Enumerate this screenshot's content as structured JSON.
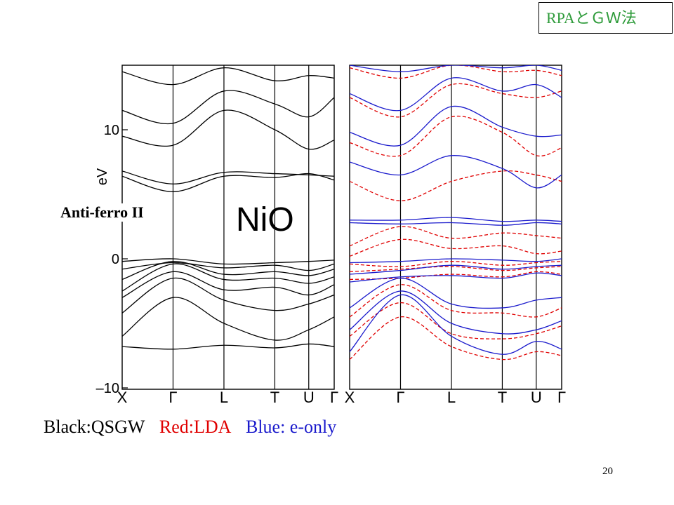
{
  "slide": {
    "header_tag": "RPAとＧＷ法",
    "material": "NiO",
    "phase": "Anti-ferro II",
    "page_number": "20"
  },
  "legend": [
    {
      "label": "Black:QSGW",
      "color": "#000000"
    },
    {
      "label": "Red:LDA",
      "color": "#e00000"
    },
    {
      "label": "Blue: e-only",
      "color": "#1a1acc"
    }
  ],
  "chart_data": [
    {
      "type": "line",
      "panel": "left",
      "ylabel": "eV",
      "ylim": [
        -10,
        15
      ],
      "yticks": [
        -10,
        0,
        10
      ],
      "kpath_labels": [
        "X",
        "Γ",
        "L",
        "T",
        "U",
        "Γ"
      ],
      "kpath_positions": [
        0,
        0.24,
        0.48,
        0.72,
        0.88,
        1.0
      ],
      "series": [
        {
          "color": "#000000",
          "style": "solid",
          "x": [
            0,
            0.24,
            0.48,
            0.72,
            0.88,
            1.0
          ],
          "bands": [
            [
              -6.8,
              -7.0,
              -6.7,
              -6.9,
              -6.6,
              -6.8
            ],
            [
              -6.0,
              -3.0,
              -5.0,
              -6.3,
              -5.5,
              -4.5
            ],
            [
              -4.2,
              -1.5,
              -3.2,
              -4.0,
              -3.5,
              -2.8
            ],
            [
              -3.0,
              -1.0,
              -2.4,
              -2.2,
              -2.8,
              -2.0
            ],
            [
              -2.5,
              -0.4,
              -1.6,
              -1.5,
              -1.9,
              -1.4
            ],
            [
              -1.6,
              -0.2,
              -1.2,
              -1.0,
              -1.3,
              -0.8
            ],
            [
              -0.8,
              -0.3,
              -0.7,
              -0.5,
              -0.9,
              -0.4
            ],
            [
              -0.2,
              0.0,
              -0.4,
              -0.3,
              -0.2,
              -0.1
            ],
            [
              6.4,
              5.2,
              6.4,
              6.3,
              6.6,
              6.1
            ],
            [
              6.8,
              5.8,
              6.7,
              6.6,
              6.5,
              6.4
            ],
            [
              9.5,
              8.8,
              11.5,
              10.0,
              8.5,
              9.2
            ],
            [
              11.5,
              10.5,
              13.0,
              12.0,
              11.0,
              12.5
            ],
            [
              14.5,
              13.5,
              14.8,
              13.8,
              14.2,
              14.0
            ]
          ]
        }
      ]
    },
    {
      "type": "line",
      "panel": "right",
      "ylim": [
        -10,
        15
      ],
      "kpath_labels": [
        "X",
        "Γ",
        "L",
        "T",
        "U",
        "Γ"
      ],
      "kpath_positions": [
        0,
        0.24,
        0.48,
        0.72,
        0.88,
        1.0
      ],
      "series": [
        {
          "name": "LDA",
          "color": "#e00000",
          "style": "dashed",
          "x": [
            0,
            0.24,
            0.48,
            0.72,
            0.88,
            1.0
          ],
          "bands": [
            [
              -7.8,
              -4.5,
              -6.8,
              -7.8,
              -7.2,
              -7.5
            ],
            [
              -6.0,
              -3.4,
              -5.8,
              -6.2,
              -5.8,
              -5.2
            ],
            [
              -4.5,
              -2.0,
              -4.0,
              -4.2,
              -4.5,
              -3.8
            ],
            [
              -1.6,
              -1.5,
              -1.2,
              -1.4,
              -1.0,
              -1.2
            ],
            [
              -1.0,
              -0.8,
              -0.6,
              -0.9,
              -0.7,
              -0.6
            ],
            [
              -0.4,
              -0.6,
              -0.2,
              -0.5,
              -0.3,
              -0.2
            ],
            [
              0.2,
              1.5,
              0.8,
              1.0,
              0.4,
              0.6
            ],
            [
              1.0,
              2.5,
              1.6,
              2.0,
              1.8,
              1.6
            ],
            [
              6.0,
              4.5,
              6.0,
              6.8,
              6.5,
              6.0
            ],
            [
              9.0,
              8.0,
              11.0,
              9.8,
              8.0,
              8.6
            ],
            [
              12.5,
              11.0,
              13.5,
              12.8,
              12.5,
              13.0
            ],
            [
              14.8,
              14.0,
              15.0,
              14.5,
              14.6,
              14.2
            ]
          ]
        },
        {
          "name": "e-only",
          "color": "#1a1acc",
          "style": "solid",
          "x": [
            0,
            0.24,
            0.48,
            0.72,
            0.88,
            1.0
          ],
          "bands": [
            [
              -7.2,
              -2.8,
              -6.0,
              -7.4,
              -6.4,
              -7.0
            ],
            [
              -5.5,
              -2.5,
              -5.0,
              -5.8,
              -5.5,
              -4.8
            ],
            [
              -3.8,
              -1.5,
              -3.5,
              -3.8,
              -3.2,
              -3.0
            ],
            [
              -1.8,
              -1.4,
              -1.3,
              -1.5,
              -1.1,
              -1.3
            ],
            [
              -1.2,
              -0.9,
              -0.5,
              -0.8,
              -0.6,
              -0.5
            ],
            [
              -0.3,
              -0.2,
              0.0,
              -0.1,
              -0.2,
              0.0
            ],
            [
              2.8,
              2.7,
              2.8,
              2.6,
              2.8,
              2.7
            ],
            [
              3.0,
              3.0,
              3.2,
              2.9,
              3.0,
              2.9
            ],
            [
              7.5,
              6.5,
              8.0,
              7.0,
              5.5,
              6.5
            ],
            [
              9.8,
              8.8,
              11.8,
              10.2,
              9.5,
              9.6
            ],
            [
              12.8,
              11.5,
              14.0,
              13.0,
              13.5,
              12.5
            ],
            [
              15.0,
              14.5,
              15.0,
              14.8,
              15.0,
              14.6
            ]
          ]
        }
      ]
    }
  ]
}
